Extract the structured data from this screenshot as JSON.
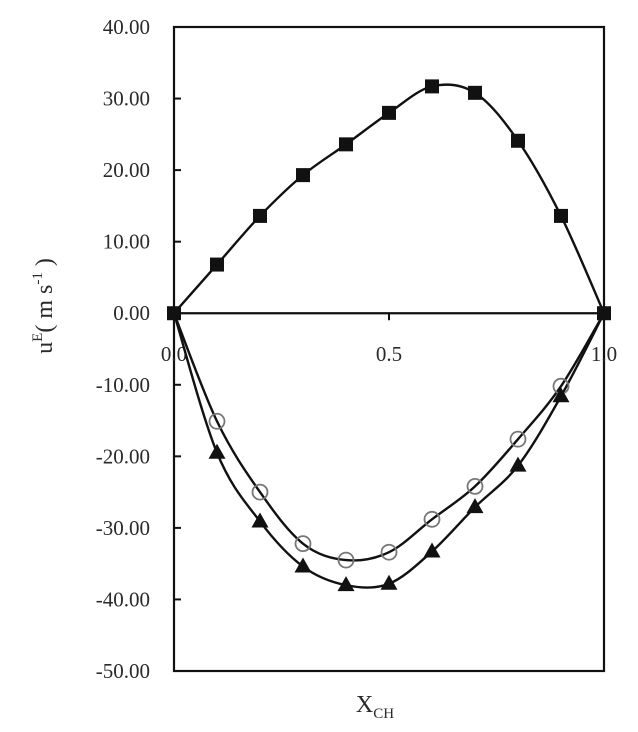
{
  "chart_data": {
    "type": "scatter",
    "title": "",
    "xlabel": "X",
    "xlabel_subscript": "CH",
    "ylabel": "u",
    "ylabel_superscript": "E",
    "ylabel_units": "( m s",
    "ylabel_units_superscript": "-1",
    "ylabel_units_close": " )",
    "xlim": [
      0.0,
      1.0
    ],
    "ylim": [
      -50.0,
      40.0
    ],
    "x_ticks": [
      {
        "value": 0.0,
        "label": "0.0"
      },
      {
        "value": 0.5,
        "label": "0.5"
      },
      {
        "value": 1.0,
        "label": "1.0"
      }
    ],
    "y_ticks": [
      {
        "value": 40,
        "label": "40.00"
      },
      {
        "value": 30,
        "label": "30.00"
      },
      {
        "value": 20,
        "label": "20.00"
      },
      {
        "value": 10,
        "label": "10.00"
      },
      {
        "value": 0,
        "label": "0.00"
      },
      {
        "value": -10,
        "label": "-10.00"
      },
      {
        "value": -20,
        "label": "-20.00"
      },
      {
        "value": -30,
        "label": "-30.00"
      },
      {
        "value": -40,
        "label": "-40.00"
      },
      {
        "value": -50,
        "label": "-50.00"
      }
    ],
    "grid": false,
    "legend": null,
    "x": [
      0.0,
      0.1,
      0.2,
      0.3,
      0.4,
      0.5,
      0.6,
      0.7,
      0.8,
      0.9,
      1.0
    ],
    "series": [
      {
        "name": "filled squares",
        "marker": "square",
        "marker_fill": "#111111",
        "values": [
          0.0,
          6.8,
          13.6,
          19.3,
          23.6,
          28.0,
          31.7,
          30.8,
          24.1,
          13.6,
          0.0
        ]
      },
      {
        "name": "open circles",
        "marker": "circle",
        "marker_fill": "none",
        "marker_stroke": "#777777",
        "values": [
          0.0,
          -15.1,
          -25.0,
          -32.2,
          -34.5,
          -33.4,
          -28.8,
          -24.2,
          -17.6,
          -10.2,
          0.0
        ]
      },
      {
        "name": "filled triangles",
        "marker": "triangle",
        "marker_fill": "#111111",
        "values": [
          0.0,
          -19.5,
          -29.1,
          -35.4,
          -38.0,
          -37.8,
          -33.3,
          -27.1,
          -21.3,
          -11.6,
          0.0
        ]
      }
    ]
  }
}
